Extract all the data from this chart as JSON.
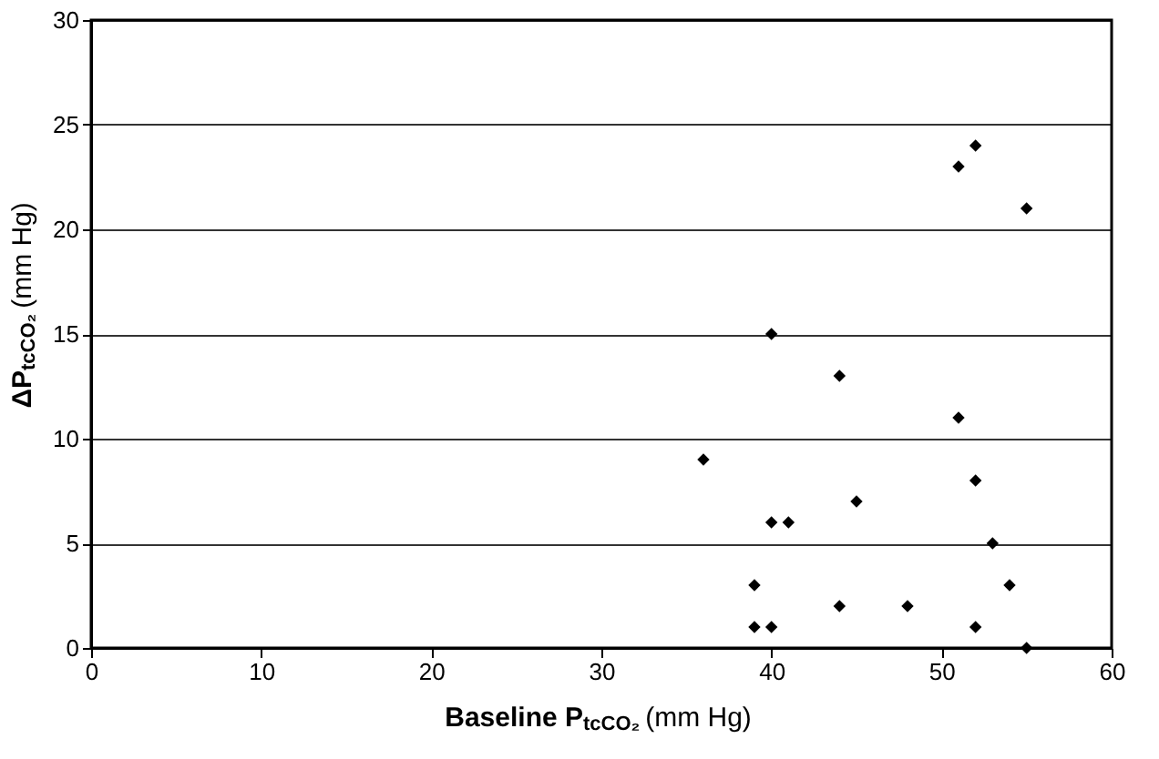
{
  "chart_data": {
    "type": "scatter",
    "xlabel": "Baseline P$_{tcCO₂}$ (mm Hg)",
    "ylabel": "ΔP$_{tcCO₂}$ (mm Hg)",
    "x": [
      52,
      51,
      55,
      40,
      44,
      51,
      36,
      52,
      45,
      40,
      41,
      53,
      39,
      54,
      44,
      48,
      39,
      40,
      52,
      55
    ],
    "series": [
      {
        "color": "#000000",
        "values": [
          24,
          23,
          21,
          15,
          13,
          11,
          9,
          8,
          7,
          6,
          6,
          5,
          3,
          3,
          2,
          2,
          1,
          1,
          1,
          0
        ]
      }
    ],
    "xlim": [
      0,
      60
    ],
    "xticks": [
      0,
      10,
      20,
      30,
      40,
      50,
      60
    ],
    "ylim": [
      0,
      30
    ],
    "yticks": [
      0,
      5,
      10,
      15,
      20,
      25,
      30
    ],
    "grid": "y",
    "marker": "diamond"
  }
}
